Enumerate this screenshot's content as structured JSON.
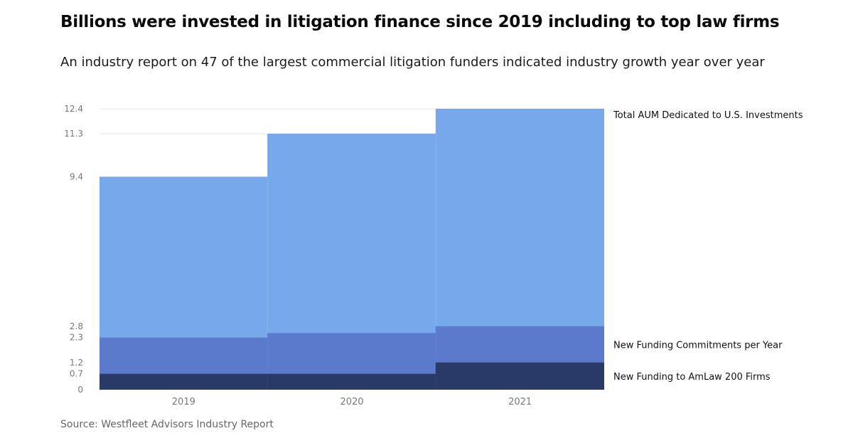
{
  "title": "Billions were invested in litigation finance since 2019 including to top law firms",
  "subtitle": "An industry report on 47 of the largest commercial litigation funders indicated industry growth year over year",
  "source": "Source: Westfleet Advisors Industry Report",
  "colors": {
    "total_aum": "#77a8ec",
    "commitments": "#5b7acb",
    "amlaw": "#2a3a66",
    "grid": "#e6e6e6"
  },
  "chart_data": {
    "type": "area",
    "step": true,
    "categories": [
      "2019",
      "2020",
      "2021"
    ],
    "ylim": [
      0,
      12.4
    ],
    "yticks": [
      "0",
      "0.7",
      "1.2",
      "2.3",
      "2.8",
      "9.4",
      "11.3",
      "12.4"
    ],
    "grid": true,
    "series": [
      {
        "name": "Total AUM Dedicated to U.S. Investments",
        "values": [
          9.4,
          11.3,
          12.4
        ]
      },
      {
        "name": "New Funding Commitments per Year",
        "values": [
          2.3,
          2.5,
          2.8
        ]
      },
      {
        "name": "New Funding to AmLaw 200 Firms",
        "values": [
          0.7,
          0.7,
          1.2
        ]
      }
    ]
  }
}
